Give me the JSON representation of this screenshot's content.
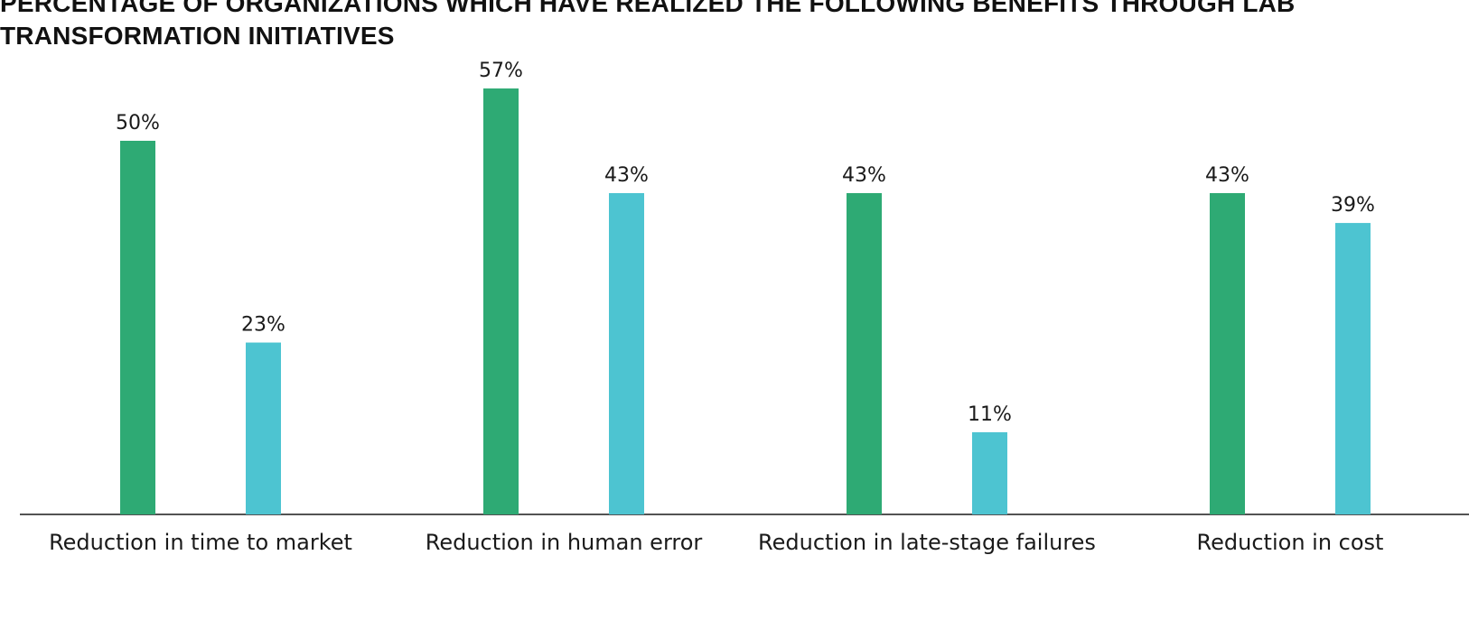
{
  "chart_data": {
    "type": "bar",
    "title_lines": [
      "PERCENTAGE OF ORGANIZATIONS WHICH HAVE REALIZED THE FOLLOWING BENEFITS THROUGH LAB",
      "TRANSFORMATION INITIATIVES"
    ],
    "categories": [
      "Reduction in time to market",
      "Reduction in human error",
      "Reduction in late-stage failures",
      "Reduction in cost"
    ],
    "series": [
      {
        "values": [
          50,
          57,
          43,
          43
        ],
        "color": "#2eaa74"
      },
      {
        "values": [
          23,
          43,
          11,
          39
        ],
        "color": "#4dc4d1"
      }
    ],
    "value_suffix": "%",
    "ylim": [
      0,
      60
    ],
    "grid": false,
    "legend": "none"
  }
}
